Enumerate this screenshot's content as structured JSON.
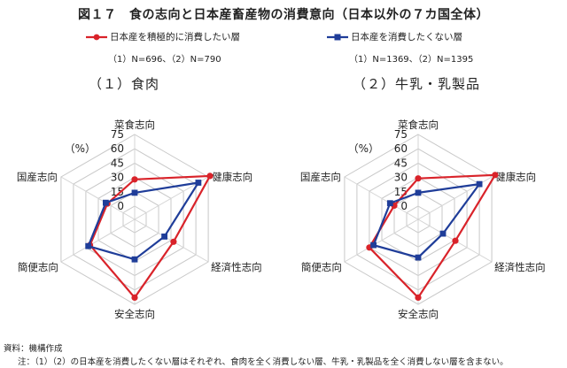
{
  "title": "図１７　食の志向と日本産畜産物の消費意向（日本以外の７カ国全体）",
  "legend": {
    "series1": {
      "label": "日本産を積極的に消費したい層",
      "n": "（1）N=696、（2）N=790",
      "color": "#d9232a"
    },
    "series2": {
      "label": "日本産を消費したくない層",
      "n": "（1）N=1369、（2）N=1395",
      "color": "#1f3d99"
    }
  },
  "footer": {
    "source": "資料：機構作成",
    "note": "注：（1）（2）の日本産を消費したくない層はそれぞれ、食肉を全く消費しない層、牛乳・乳製品を全く消費しない層を含まない。"
  },
  "chart_data": [
    {
      "type": "radar",
      "title": "（１）食肉",
      "axes": [
        "菜食志向",
        "健康志向",
        "経済性志向",
        "安全志向",
        "簡便志向",
        "国産志向"
      ],
      "unit_label": "（%）",
      "ticks": [
        0,
        15,
        30,
        45,
        60,
        75
      ],
      "rlim": [
        0,
        75
      ],
      "grid": true,
      "series": [
        {
          "name": "日本産を積極的に消費したい層",
          "values": [
            28,
            77,
            33,
            68,
            40,
            19
          ],
          "color": "#d9232a"
        },
        {
          "name": "日本産を消費したくない層",
          "values": [
            14,
            63,
            22,
            28,
            42,
            21
          ],
          "color": "#1f3d99"
        }
      ]
    },
    {
      "type": "radar",
      "title": "（２）牛乳・乳製品",
      "axes": [
        "菜食志向",
        "健康志向",
        "経済性志向",
        "安全志向",
        "簡便志向",
        "国産志向"
      ],
      "unit_label": "（%）",
      "ticks": [
        0,
        15,
        30,
        45,
        60,
        75
      ],
      "rlim": [
        0,
        75
      ],
      "grid": true,
      "series": [
        {
          "name": "日本産を積極的に消費したい層",
          "values": [
            29,
            79,
            31,
            68,
            45,
            15
          ],
          "color": "#d9232a"
        },
        {
          "name": "日本産を消費したくない層",
          "values": [
            14,
            60,
            16,
            26,
            40,
            20
          ],
          "color": "#1f3d99"
        }
      ]
    }
  ]
}
